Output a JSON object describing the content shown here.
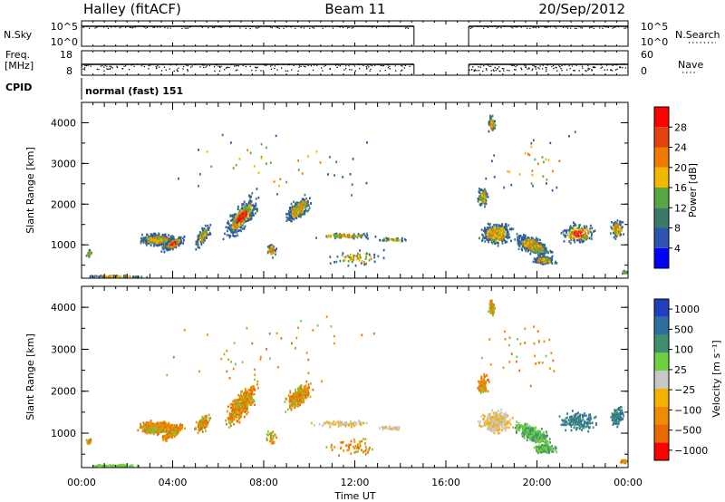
{
  "header": {
    "station": "Halley (fitACF)",
    "beam": "Beam 11",
    "date": "20/Sep/2012"
  },
  "status_panels": {
    "nsky": {
      "label": "N.Sky",
      "ticks": [
        "10^5",
        "10^0"
      ]
    },
    "nsearch": {
      "label": "N.Search",
      "ticks": [
        "10^5",
        "10^0"
      ]
    },
    "freq": {
      "label_top": "Freq.",
      "label_bottom": "[MHz]",
      "ticks": [
        "18",
        "8"
      ]
    },
    "nave": {
      "label": "Nave",
      "ticks": [
        "60",
        "0"
      ]
    },
    "cpid": {
      "label": "CPID",
      "value": "normal (fast) 151"
    }
  },
  "chart_data": [
    {
      "type": "heatmap",
      "parameter": "Power",
      "colorbar_label": "Power [dB]",
      "ylabel": "Slant Range [km]",
      "xlabel": "Time UT",
      "x_ticks": [
        "00:00",
        "04:00",
        "08:00",
        "12:00",
        "16:00",
        "20:00",
        "00:00"
      ],
      "x_range_hours": [
        0,
        24
      ],
      "y_ticks": [
        "1000",
        "2000",
        "3000",
        "4000"
      ],
      "y_range_km": [
        180,
        4500
      ],
      "colorbar_ticks": [
        "4",
        "8",
        "12",
        "16",
        "20",
        "24",
        "28"
      ],
      "colors": [
        "#0000ff",
        "#2d54b0",
        "#3b7a66",
        "#57a845",
        "#f2b800",
        "#f07a00",
        "#e54010",
        "#ff0000"
      ],
      "data_gap_hours": [
        14.6,
        17.0
      ]
    },
    {
      "type": "heatmap",
      "parameter": "Velocity",
      "colorbar_label": "Velocity [m s⁻¹]",
      "ylabel": "Slant Range [km]",
      "xlabel": "Time UT",
      "x_ticks": [
        "00:00",
        "04:00",
        "08:00",
        "12:00",
        "16:00",
        "20:00",
        "00:00"
      ],
      "x_range_hours": [
        0,
        24
      ],
      "y_ticks": [
        "1000",
        "2000",
        "3000",
        "4000"
      ],
      "y_range_km": [
        180,
        4500
      ],
      "colorbar_ticks": [
        "1000",
        "500",
        "100",
        "25",
        "−25",
        "−100",
        "−500",
        "−1000"
      ],
      "colors": [
        "#1f3fbf",
        "#2f6f9f",
        "#3f8f6f",
        "#6fcf3f",
        "#c8c8c8",
        "#f5b000",
        "#f08a00",
        "#e86a00",
        "#ff0000"
      ],
      "data_gap_hours": [
        14.6,
        17.0
      ]
    }
  ]
}
